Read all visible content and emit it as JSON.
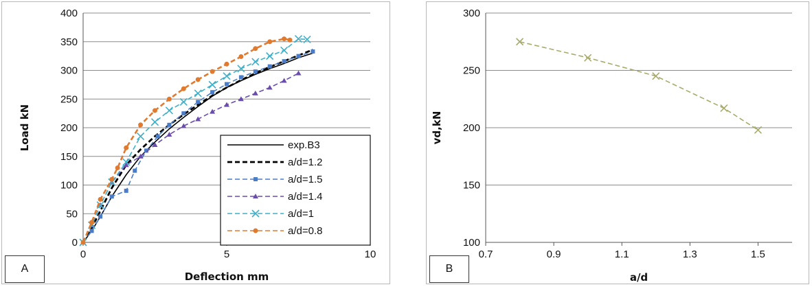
{
  "chart_data": [
    {
      "type": "line",
      "panel_label": "A",
      "xlabel": "Deflection mm",
      "ylabel": "Load kN",
      "xlim": [
        0,
        10
      ],
      "ylim": [
        0,
        400
      ],
      "xticks": [
        0,
        5,
        10
      ],
      "yticks": [
        0,
        50,
        100,
        150,
        200,
        250,
        300,
        350,
        400
      ],
      "grid": "horizontal",
      "legend_position": "bottom-right",
      "series": [
        {
          "name": "exp.B3",
          "color": "#000000",
          "style": "solid",
          "marker": "none",
          "x": [
            0,
            0.3,
            0.6,
            1.0,
            1.5,
            2.0,
            2.5,
            3.0,
            3.5,
            4.0,
            4.5,
            5.0,
            5.5,
            6.0,
            6.5,
            7.0,
            7.5,
            8.0
          ],
          "y": [
            0,
            20,
            45,
            80,
            118,
            150,
            175,
            198,
            218,
            237,
            255,
            270,
            282,
            293,
            303,
            312,
            322,
            330
          ]
        },
        {
          "name": "a/d=1.2",
          "color": "#000000",
          "style": "dashed",
          "marker": "none",
          "x": [
            0,
            0.3,
            0.6,
            1.0,
            1.5,
            2.0,
            2.5,
            3.0,
            3.5,
            4.0,
            4.5,
            5.0,
            5.5,
            6.0,
            6.5,
            7.0,
            7.5,
            8.0
          ],
          "y": [
            0,
            25,
            55,
            95,
            135,
            162,
            185,
            205,
            223,
            240,
            256,
            270,
            283,
            295,
            306,
            316,
            326,
            336
          ]
        },
        {
          "name": "a/d=1.5",
          "color": "#4a7cc7",
          "style": "dashed",
          "marker": "square",
          "x": [
            0,
            0.3,
            0.6,
            1.0,
            1.5,
            1.8,
            2.2,
            2.6,
            3.0,
            3.5,
            4.0,
            4.5,
            5.0,
            5.5,
            6.0,
            6.5,
            7.0,
            7.5,
            8.0
          ],
          "y": [
            0,
            20,
            45,
            80,
            90,
            125,
            160,
            185,
            205,
            225,
            245,
            262,
            276,
            288,
            298,
            307,
            316,
            325,
            333
          ]
        },
        {
          "name": "a/d=1.4",
          "color": "#6a4cad",
          "style": "dashed",
          "marker": "triangle",
          "x": [
            0,
            0.3,
            0.6,
            1.0,
            1.5,
            2.0,
            2.5,
            3.0,
            3.5,
            4.0,
            4.5,
            5.0,
            5.5,
            6.0,
            6.5,
            7.0,
            7.5
          ],
          "y": [
            0,
            30,
            65,
            105,
            135,
            150,
            170,
            188,
            203,
            215,
            228,
            240,
            250,
            260,
            270,
            282,
            295
          ]
        },
        {
          "name": "a/d=1",
          "color": "#3fb0c9",
          "style": "dashed",
          "marker": "x",
          "x": [
            0,
            0.3,
            0.6,
            1.0,
            1.5,
            2.0,
            2.5,
            3.0,
            3.5,
            4.0,
            4.5,
            5.0,
            5.5,
            6.0,
            6.5,
            7.0,
            7.5,
            7.8
          ],
          "y": [
            0,
            30,
            65,
            105,
            140,
            185,
            210,
            230,
            245,
            260,
            275,
            290,
            303,
            315,
            325,
            335,
            355,
            354
          ]
        },
        {
          "name": "a/d=0.8",
          "color": "#e07a2f",
          "style": "dashed",
          "marker": "circle",
          "x": [
            0,
            0.3,
            0.6,
            1.0,
            1.2,
            1.5,
            2.0,
            2.5,
            3.0,
            3.5,
            4.0,
            4.5,
            5.0,
            5.5,
            6.0,
            6.5,
            7.0,
            7.2
          ],
          "y": [
            0,
            35,
            75,
            110,
            130,
            165,
            205,
            230,
            250,
            268,
            284,
            298,
            311,
            324,
            338,
            350,
            355,
            353
          ]
        }
      ]
    },
    {
      "type": "line",
      "panel_label": "B",
      "xlabel": "a/d",
      "ylabel": "vd,kN",
      "xlim": [
        0.7,
        1.6
      ],
      "ylim": [
        100,
        300
      ],
      "xticks": [
        0.7,
        0.9,
        1.1,
        1.3,
        1.5
      ],
      "yticks": [
        100,
        150,
        200,
        250,
        300
      ],
      "grid": "horizontal",
      "series": [
        {
          "color": "#a8ab6a",
          "style": "dashed",
          "marker": "x",
          "x": [
            0.8,
            1.0,
            1.2,
            1.4,
            1.5
          ],
          "y": [
            275,
            261,
            245,
            217,
            198
          ]
        }
      ]
    }
  ]
}
